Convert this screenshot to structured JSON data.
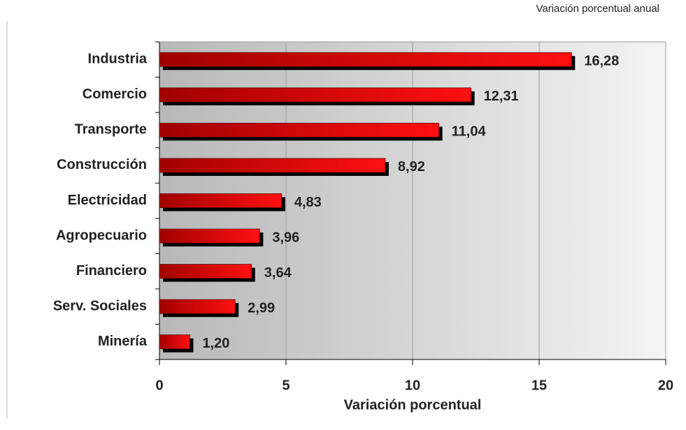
{
  "chart_data": {
    "type": "barh",
    "subtitle": "Variación porcentual anual",
    "x_label": "Variación porcentual",
    "categories": [
      "Industria",
      "Comercio",
      "Transporte",
      "Construcción",
      "Electricidad",
      "Agropecuario",
      "Financiero",
      "Serv. Sociales",
      "Minería"
    ],
    "values": [
      16.28,
      12.31,
      11.04,
      8.92,
      4.83,
      3.96,
      3.64,
      2.99,
      1.2
    ],
    "value_labels": [
      "16,28",
      "12,31",
      "11,04",
      "8,92",
      "4,83",
      "3,96",
      "3,64",
      "2,99",
      "1,20"
    ],
    "color": "#ff0000",
    "xlim": [
      0,
      20
    ],
    "xticks": [
      0,
      5,
      10,
      15,
      20
    ],
    "grid": true
  }
}
